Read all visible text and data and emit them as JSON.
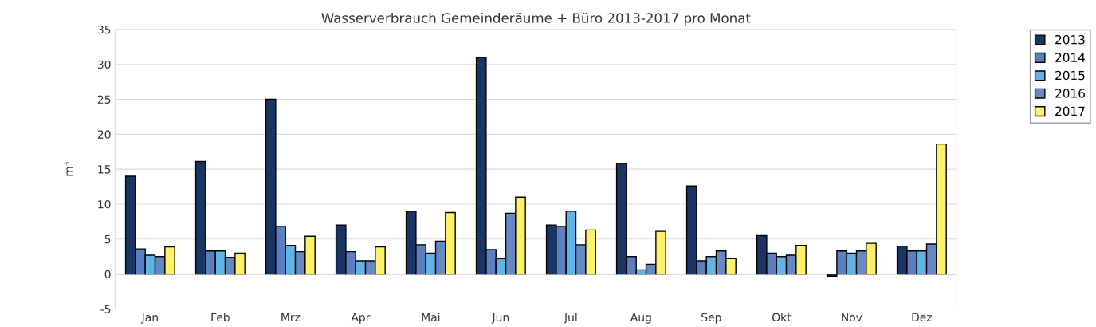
{
  "chart_data": {
    "type": "bar",
    "title": "Wasserverbrauch Gemeinderäume + Büro 2013-2017 pro Monat",
    "ylabel": "m³",
    "categories": [
      "Jan",
      "Feb",
      "Mrz",
      "Apr",
      "Mai",
      "Jun",
      "Jul",
      "Aug",
      "Sep",
      "Okt",
      "Nov",
      "Dez"
    ],
    "series": [
      {
        "name": "2013",
        "color": "#1a3464",
        "values": [
          14,
          16.1,
          25,
          7,
          9,
          31,
          7,
          15.8,
          12.6,
          5.5,
          -0.3,
          4
        ]
      },
      {
        "name": "2014",
        "color": "#5b7fbf",
        "values": [
          3.6,
          3.3,
          6.8,
          3.2,
          4.2,
          3.5,
          6.8,
          2.5,
          1.9,
          3,
          3.3,
          3.3
        ]
      },
      {
        "name": "2015",
        "color": "#62b4e6",
        "values": [
          2.7,
          3.3,
          4.1,
          1.9,
          3,
          2.2,
          9,
          0.6,
          2.5,
          2.5,
          3,
          3.3
        ]
      },
      {
        "name": "2016",
        "color": "#6589c2",
        "values": [
          2.5,
          2.4,
          3.2,
          1.9,
          4.7,
          8.7,
          4.2,
          1.4,
          3.3,
          2.7,
          3.3,
          4.3
        ]
      },
      {
        "name": "2017",
        "color": "#fdf16a",
        "values": [
          3.9,
          3,
          5.4,
          3.9,
          8.8,
          11,
          6.3,
          6.1,
          2.2,
          4.1,
          4.4,
          18.6
        ]
      }
    ],
    "ylim": [
      -5,
      35
    ],
    "yticks": [
      -5,
      0,
      5,
      10,
      15,
      20,
      25,
      30,
      35
    ],
    "grid": "y",
    "legend": "top right"
  }
}
